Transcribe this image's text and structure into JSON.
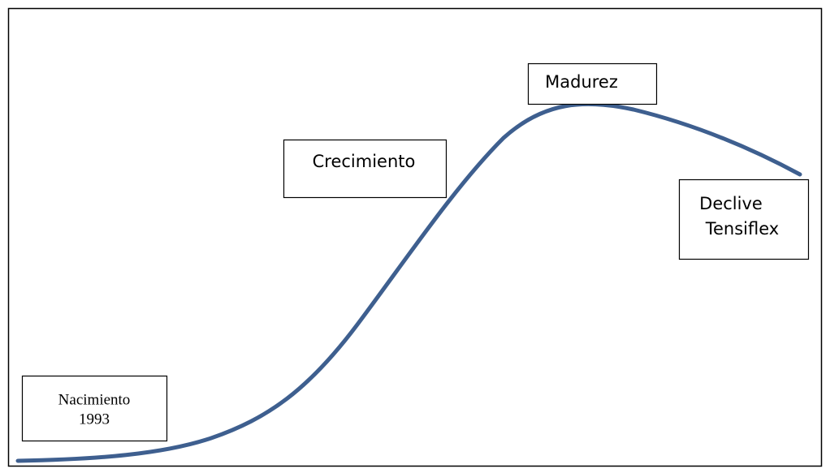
{
  "nodes": [
    {
      "lines": [
        "Nacimiento",
        "1993"
      ]
    },
    {
      "lines": [
        "Crecimiento"
      ]
    },
    {
      "lines": [
        "Madurez"
      ]
    },
    {
      "lines": [
        "Declive",
        "Tensiflex"
      ]
    }
  ]
}
